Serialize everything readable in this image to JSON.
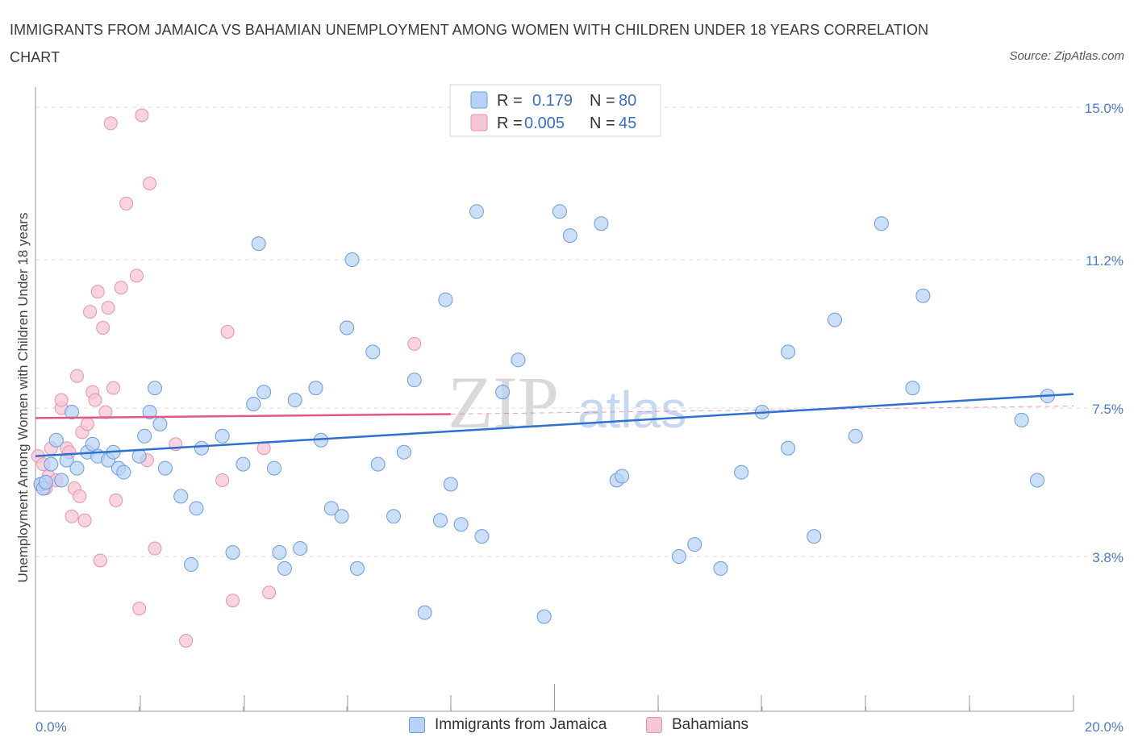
{
  "title": "IMMIGRANTS FROM JAMAICA VS BAHAMIAN UNEMPLOYMENT AMONG WOMEN WITH CHILDREN UNDER 18 YEARS CORRELATION CHART",
  "source": "Source: ZipAtlas.com",
  "watermark": {
    "zip": "ZIP",
    "atlas": "atlas"
  },
  "colors": {
    "blue_fill": "#b7d2f5",
    "blue_stroke": "#6a9be0",
    "blue_line": "#2f6fce",
    "pink_fill": "#f7c6d6",
    "pink_stroke": "#e592b0",
    "pink_line": "#e0588a",
    "axis_text": "#4a7cc9",
    "grid": "#dddddd"
  },
  "legend": {
    "rows": [
      {
        "r_label": "R =",
        "r_value": "0.179",
        "n_label": "N =",
        "n_value": "80"
      },
      {
        "r_label": "R =",
        "r_value": "0.005",
        "n_label": "N =",
        "n_value": "45"
      }
    ]
  },
  "chart_data": {
    "type": "scatter",
    "title": "IMMIGRANTS FROM JAMAICA VS BAHAMIAN UNEMPLOYMENT AMONG WOMEN WITH CHILDREN UNDER 18 YEARS CORRELATION CHART",
    "xlabel": "",
    "ylabel": "Unemployment Among Women with Children Under 18 years",
    "xlim": [
      0,
      20
    ],
    "ylim": [
      0,
      15.3
    ],
    "x_tick_labels": [
      "0.0%",
      "20.0%"
    ],
    "y_ticks": [
      3.8,
      7.5,
      11.2,
      15.0
    ],
    "y_tick_labels": [
      "3.8%",
      "7.5%",
      "11.2%",
      "15.0%"
    ],
    "legend_position": "top-center",
    "series": [
      {
        "name": "Immigrants from Jamaica",
        "R": 0.179,
        "N": 80,
        "trend": {
          "x": [
            0,
            20
          ],
          "y": [
            6.3,
            7.85
          ]
        },
        "points": [
          [
            0.1,
            5.6
          ],
          [
            0.15,
            5.5
          ],
          [
            0.2,
            5.65
          ],
          [
            0.3,
            6.1
          ],
          [
            0.4,
            6.7
          ],
          [
            0.5,
            5.7
          ],
          [
            0.6,
            6.2
          ],
          [
            0.7,
            7.4
          ],
          [
            0.8,
            6.0
          ],
          [
            1.0,
            6.4
          ],
          [
            1.1,
            6.6
          ],
          [
            1.2,
            6.3
          ],
          [
            1.4,
            6.2
          ],
          [
            1.5,
            6.4
          ],
          [
            1.6,
            6.0
          ],
          [
            1.7,
            5.9
          ],
          [
            2.0,
            6.3
          ],
          [
            2.1,
            6.8
          ],
          [
            2.3,
            8.0
          ],
          [
            2.2,
            7.4
          ],
          [
            2.4,
            7.1
          ],
          [
            2.5,
            6.0
          ],
          [
            2.8,
            5.3
          ],
          [
            3.0,
            3.6
          ],
          [
            3.1,
            5.0
          ],
          [
            3.2,
            6.5
          ],
          [
            3.8,
            3.9
          ],
          [
            3.6,
            6.8
          ],
          [
            4.0,
            6.1
          ],
          [
            4.2,
            7.6
          ],
          [
            4.3,
            11.6
          ],
          [
            4.4,
            7.9
          ],
          [
            4.6,
            6.0
          ],
          [
            4.7,
            3.9
          ],
          [
            4.8,
            3.5
          ],
          [
            5.0,
            7.7
          ],
          [
            5.1,
            4.0
          ],
          [
            5.4,
            8.0
          ],
          [
            5.5,
            6.7
          ],
          [
            5.7,
            5.0
          ],
          [
            5.9,
            4.8
          ],
          [
            6.0,
            9.5
          ],
          [
            6.1,
            11.2
          ],
          [
            6.2,
            3.5
          ],
          [
            6.5,
            8.9
          ],
          [
            6.6,
            6.1
          ],
          [
            6.9,
            4.8
          ],
          [
            7.1,
            6.4
          ],
          [
            7.3,
            8.2
          ],
          [
            7.5,
            2.4
          ],
          [
            7.8,
            4.7
          ],
          [
            7.9,
            10.2
          ],
          [
            8.0,
            5.6
          ],
          [
            8.2,
            4.6
          ],
          [
            8.5,
            12.4
          ],
          [
            8.6,
            4.3
          ],
          [
            9.0,
            7.9
          ],
          [
            9.3,
            8.7
          ],
          [
            9.8,
            2.3
          ],
          [
            10.1,
            12.4
          ],
          [
            10.3,
            11.8
          ],
          [
            10.9,
            12.1
          ],
          [
            11.2,
            5.7
          ],
          [
            11.3,
            5.8
          ],
          [
            12.4,
            3.8
          ],
          [
            12.7,
            4.1
          ],
          [
            13.2,
            3.5
          ],
          [
            13.6,
            5.9
          ],
          [
            14.0,
            7.4
          ],
          [
            14.5,
            6.5
          ],
          [
            14.5,
            8.9
          ],
          [
            15.0,
            4.3
          ],
          [
            15.4,
            9.7
          ],
          [
            15.8,
            6.8
          ],
          [
            16.3,
            12.1
          ],
          [
            16.9,
            8.0
          ],
          [
            17.1,
            10.3
          ],
          [
            19.0,
            7.2
          ],
          [
            19.3,
            5.7
          ],
          [
            19.5,
            7.8
          ]
        ]
      },
      {
        "name": "Bahamians",
        "R": 0.005,
        "N": 45,
        "trend": {
          "x": [
            0,
            8.0
          ],
          "y": [
            7.25,
            7.35
          ]
        },
        "trend_dashed": {
          "x": [
            8.0,
            20
          ],
          "y": [
            7.35,
            7.55
          ]
        },
        "points": [
          [
            0.05,
            6.3
          ],
          [
            0.1,
            5.6
          ],
          [
            0.15,
            6.1
          ],
          [
            0.2,
            5.5
          ],
          [
            0.25,
            5.8
          ],
          [
            0.3,
            6.5
          ],
          [
            0.4,
            5.7
          ],
          [
            0.5,
            7.5
          ],
          [
            0.5,
            7.7
          ],
          [
            0.6,
            6.5
          ],
          [
            0.65,
            6.4
          ],
          [
            0.7,
            4.8
          ],
          [
            0.75,
            5.5
          ],
          [
            0.8,
            8.3
          ],
          [
            0.85,
            5.3
          ],
          [
            0.9,
            6.9
          ],
          [
            0.95,
            4.7
          ],
          [
            1.0,
            7.1
          ],
          [
            1.05,
            9.9
          ],
          [
            1.1,
            7.9
          ],
          [
            1.15,
            7.7
          ],
          [
            1.2,
            10.4
          ],
          [
            1.25,
            3.7
          ],
          [
            1.3,
            9.5
          ],
          [
            1.35,
            7.4
          ],
          [
            1.4,
            10.0
          ],
          [
            1.45,
            14.6
          ],
          [
            1.5,
            8.0
          ],
          [
            1.55,
            5.2
          ],
          [
            1.65,
            10.5
          ],
          [
            1.75,
            12.6
          ],
          [
            1.95,
            10.8
          ],
          [
            2.05,
            14.8
          ],
          [
            2.15,
            6.2
          ],
          [
            2.2,
            13.1
          ],
          [
            2.3,
            4.0
          ],
          [
            2.7,
            6.6
          ],
          [
            2.9,
            1.7
          ],
          [
            3.6,
            5.7
          ],
          [
            3.7,
            9.4
          ],
          [
            3.8,
            2.7
          ],
          [
            4.4,
            6.5
          ],
          [
            4.5,
            2.9
          ],
          [
            2.0,
            2.5
          ],
          [
            7.3,
            9.1
          ]
        ]
      }
    ]
  },
  "bottom_legend": [
    {
      "label": "Immigrants from Jamaica"
    },
    {
      "label": "Bahamians"
    }
  ]
}
